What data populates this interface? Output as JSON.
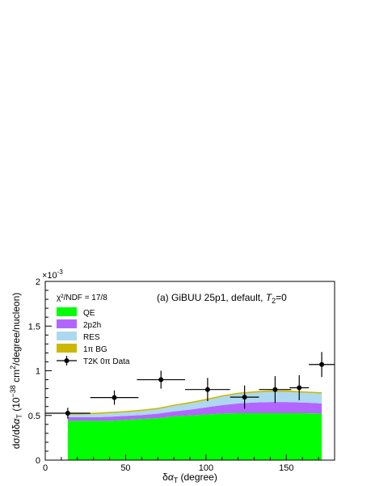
{
  "chart_data": {
    "type": "area",
    "title": "(a) GiBUU 25p1, default, T2=0",
    "title_parts": {
      "main": "(a) GiBUU 25p1, default, ",
      "var": "T",
      "sub": "2",
      "tail": "=0"
    },
    "xlabel": "δα_T (degree)",
    "xlabel_parts": {
      "delta": "δ",
      "alpha": "α",
      "sub": "T",
      "unit": " (degree)"
    },
    "ylabel": "dσ/dδα_T (10^-38 cm^2/degree/nucleon)",
    "ylabel_parts": {
      "a": "dσ/dδ",
      "alpha": "α",
      "sub": "T",
      "b": " (10",
      "exp": "−38",
      "c": " cm",
      "exp2": "2",
      "d": "/degree/nucleon)"
    },
    "y_exponent": "×10",
    "y_exponent_power": "-3",
    "xlim": [
      0,
      180
    ],
    "ylim": [
      0,
      2.0
    ],
    "x_ticks": [
      0,
      50,
      100,
      150
    ],
    "x_tick_labels": [
      "0",
      "50",
      "100",
      "150"
    ],
    "y_ticks": [
      0,
      0.5,
      1.0,
      1.5,
      2.0
    ],
    "y_tick_labels": [
      "0",
      "0.5",
      "1",
      "1.5",
      "2"
    ],
    "legend_position": "top-left",
    "chi2_label": "χ²/NDF = 17/8",
    "stack_x": [
      14,
      20,
      30,
      40,
      50,
      60,
      70,
      80,
      90,
      100,
      110,
      120,
      130,
      140,
      150,
      160,
      172
    ],
    "series": [
      {
        "name": "QE",
        "color": "#00ff00",
        "values": [
          0.44,
          0.44,
          0.44,
          0.44,
          0.45,
          0.46,
          0.47,
          0.49,
          0.5,
          0.51,
          0.52,
          0.525,
          0.525,
          0.525,
          0.525,
          0.525,
          0.52
        ]
      },
      {
        "name": "2p2h",
        "color": "#b266ff",
        "values": [
          0.04,
          0.04,
          0.04,
          0.045,
          0.045,
          0.045,
          0.05,
          0.055,
          0.065,
          0.08,
          0.095,
          0.11,
          0.12,
          0.125,
          0.125,
          0.12,
          0.115
        ]
      },
      {
        "name": "RES",
        "color": "#add8f0",
        "values": [
          0.03,
          0.03,
          0.035,
          0.04,
          0.04,
          0.045,
          0.05,
          0.06,
          0.07,
          0.08,
          0.095,
          0.105,
          0.11,
          0.115,
          0.115,
          0.11,
          0.11
        ]
      },
      {
        "name": "1π BG",
        "color": "#ccb800",
        "values": [
          0.015,
          0.015,
          0.015,
          0.015,
          0.015,
          0.015,
          0.015,
          0.015,
          0.015,
          0.015,
          0.015,
          0.015,
          0.015,
          0.015,
          0.015,
          0.015,
          0.015
        ]
      }
    ],
    "data_series": {
      "name": "T2K 0π Data",
      "points": [
        {
          "x": 14,
          "y": 0.525,
          "xerr": 14,
          "yerr": 0.06
        },
        {
          "x": 43,
          "y": 0.7,
          "xerr": 15,
          "yerr": 0.08
        },
        {
          "x": 72,
          "y": 0.9,
          "xerr": 15,
          "yerr": 0.1
        },
        {
          "x": 101,
          "y": 0.79,
          "xerr": 14,
          "yerr": 0.13
        },
        {
          "x": 124,
          "y": 0.705,
          "xerr": 9,
          "yerr": 0.13
        },
        {
          "x": 143,
          "y": 0.79,
          "xerr": 10,
          "yerr": 0.15
        },
        {
          "x": 158,
          "y": 0.81,
          "xerr": 6,
          "yerr": 0.14
        },
        {
          "x": 172,
          "y": 1.07,
          "xerr": 8,
          "yerr": 0.14
        }
      ]
    }
  }
}
